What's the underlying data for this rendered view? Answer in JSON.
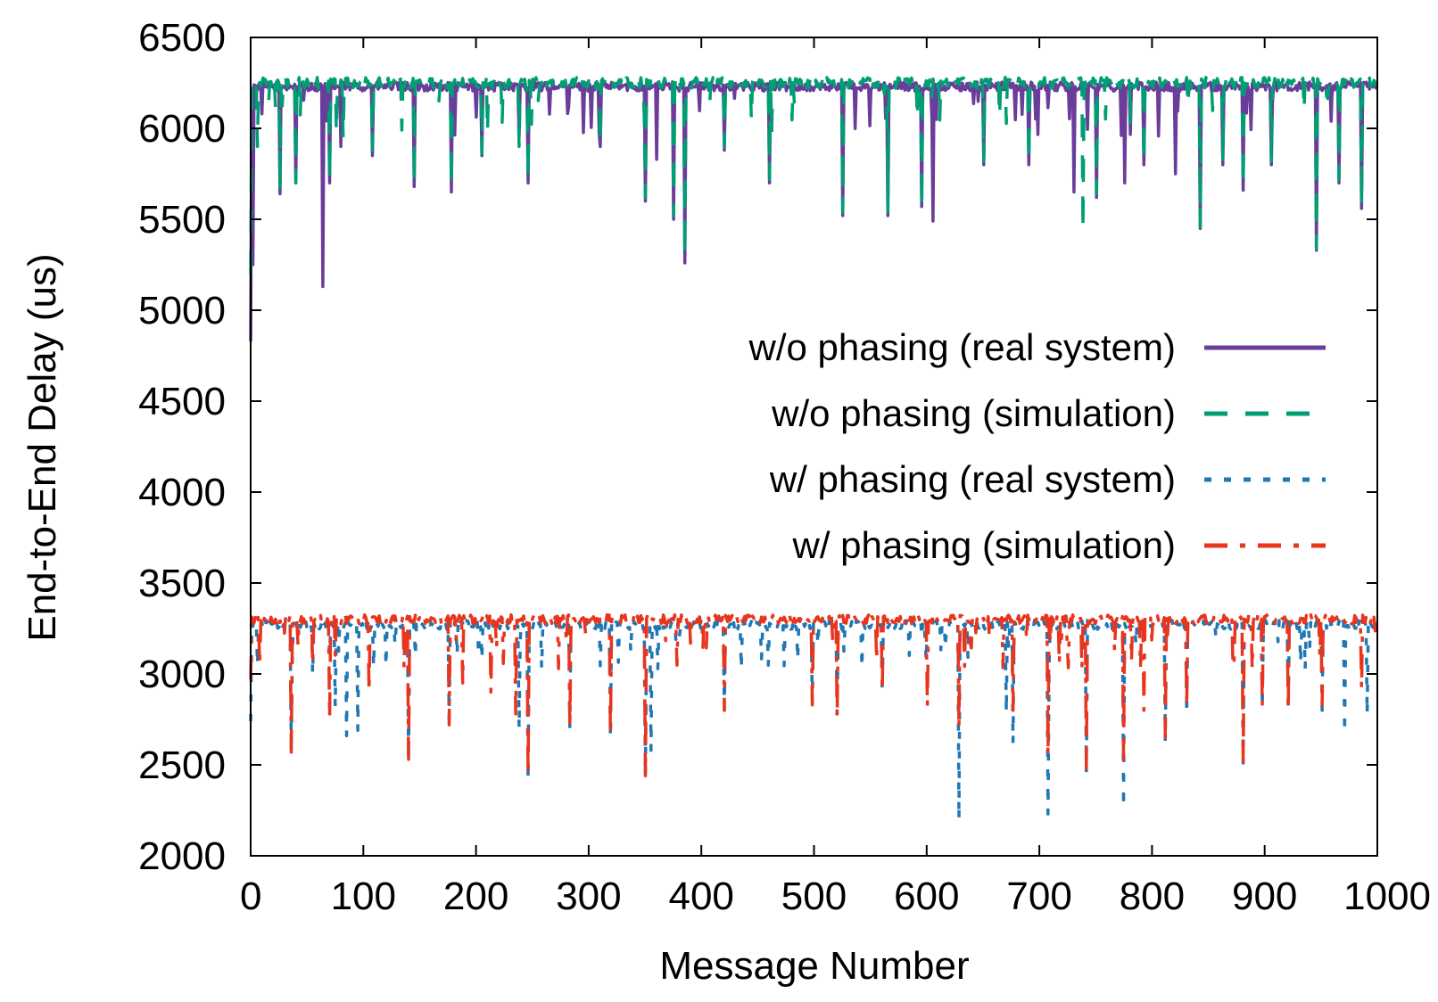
{
  "chart_data": {
    "type": "line",
    "title": "",
    "xlabel": "Message Number",
    "ylabel": "End-to-End Delay (us)",
    "xlim": [
      0,
      1000
    ],
    "ylim": [
      2000,
      6500
    ],
    "x_ticks": [
      0,
      100,
      200,
      300,
      400,
      500,
      600,
      700,
      800,
      900,
      1000
    ],
    "y_ticks": [
      2000,
      2500,
      3000,
      3500,
      4000,
      4500,
      5000,
      5500,
      6000,
      6500
    ],
    "legend_position": "right",
    "grid": false,
    "n_points": 1000,
    "series": [
      {
        "name": "w/o phasing (real system)",
        "color": "#6a3d9a",
        "style": "solid",
        "baseline": 6230,
        "jitter": 25,
        "first_value": 4830,
        "dips": [
          [
            2,
            5250
          ],
          [
            10,
            6080
          ],
          [
            26,
            5640
          ],
          [
            40,
            5700
          ],
          [
            64,
            5130
          ],
          [
            70,
            5700
          ],
          [
            80,
            5900
          ],
          [
            108,
            5850
          ],
          [
            145,
            5680
          ],
          [
            178,
            5650
          ],
          [
            205,
            5850
          ],
          [
            238,
            5950
          ],
          [
            246,
            5700
          ],
          [
            310,
            5900
          ],
          [
            350,
            5600
          ],
          [
            360,
            5830
          ],
          [
            375,
            5500
          ],
          [
            385,
            5260
          ],
          [
            420,
            5880
          ],
          [
            460,
            5700
          ],
          [
            525,
            5520
          ],
          [
            565,
            5520
          ],
          [
            595,
            5570
          ],
          [
            605,
            5490
          ],
          [
            650,
            5800
          ],
          [
            690,
            5800
          ],
          [
            730,
            5650
          ],
          [
            750,
            5620
          ],
          [
            775,
            5700
          ],
          [
            792,
            5800
          ],
          [
            820,
            5750
          ],
          [
            842,
            5450
          ],
          [
            862,
            5800
          ],
          [
            880,
            5660
          ],
          [
            905,
            5800
          ],
          [
            945,
            5330
          ],
          [
            965,
            5700
          ],
          [
            985,
            5560
          ]
        ]
      },
      {
        "name": "w/o phasing (simulation)",
        "color": "#009e73",
        "style": "dash",
        "baseline": 6250,
        "jitter": 30,
        "first_value": 5200,
        "dips": [
          [
            6,
            5900
          ],
          [
            16,
            6150
          ],
          [
            26,
            5660
          ],
          [
            40,
            5700
          ],
          [
            70,
            5720
          ],
          [
            82,
            5950
          ],
          [
            108,
            5880
          ],
          [
            145,
            5700
          ],
          [
            178,
            5680
          ],
          [
            205,
            5860
          ],
          [
            238,
            5900
          ],
          [
            246,
            5720
          ],
          [
            310,
            5920
          ],
          [
            350,
            5620
          ],
          [
            375,
            5520
          ],
          [
            385,
            5300
          ],
          [
            420,
            5900
          ],
          [
            460,
            5720
          ],
          [
            525,
            5540
          ],
          [
            565,
            5540
          ],
          [
            595,
            5560
          ],
          [
            650,
            5820
          ],
          [
            690,
            5820
          ],
          [
            738,
            5440
          ],
          [
            750,
            5640
          ],
          [
            792,
            5820
          ],
          [
            842,
            5460
          ],
          [
            862,
            5820
          ],
          [
            880,
            5680
          ],
          [
            905,
            5820
          ],
          [
            945,
            5340
          ],
          [
            965,
            5720
          ],
          [
            985,
            5580
          ]
        ]
      },
      {
        "name": "w/ phasing (real system)",
        "color": "#1f77b4",
        "style": "dot",
        "baseline": 3270,
        "jitter": 25,
        "first_value": 2740,
        "dips": [
          [
            6,
            3050
          ],
          [
            36,
            2570
          ],
          [
            55,
            3000
          ],
          [
            75,
            2820
          ],
          [
            85,
            2660
          ],
          [
            95,
            2690
          ],
          [
            140,
            2520
          ],
          [
            176,
            2750
          ],
          [
            238,
            2700
          ],
          [
            246,
            2420
          ],
          [
            283,
            2710
          ],
          [
            319,
            2650
          ],
          [
            350,
            2440
          ],
          [
            355,
            2580
          ],
          [
            420,
            2800
          ],
          [
            498,
            2850
          ],
          [
            520,
            2780
          ],
          [
            560,
            2900
          ],
          [
            628,
            2200
          ],
          [
            670,
            2790
          ],
          [
            676,
            2620
          ],
          [
            707,
            2230
          ],
          [
            741,
            2460
          ],
          [
            774,
            2270
          ],
          [
            811,
            2630
          ],
          [
            830,
            2780
          ],
          [
            880,
            2510
          ],
          [
            897,
            2820
          ],
          [
            920,
            2800
          ],
          [
            950,
            2800
          ],
          [
            970,
            2680
          ],
          [
            990,
            2780
          ]
        ]
      },
      {
        "name": "w/ phasing (simulation)",
        "color": "#e8351e",
        "style": "dashdot",
        "baseline": 3300,
        "jitter": 25,
        "first_value": 2970,
        "dips": [
          [
            8,
            3050
          ],
          [
            36,
            2570
          ],
          [
            55,
            3050
          ],
          [
            70,
            2760
          ],
          [
            105,
            2900
          ],
          [
            140,
            2530
          ],
          [
            176,
            2720
          ],
          [
            188,
            2950
          ],
          [
            213,
            2900
          ],
          [
            235,
            2780
          ],
          [
            246,
            2440
          ],
          [
            283,
            2700
          ],
          [
            319,
            2660
          ],
          [
            350,
            2440
          ],
          [
            420,
            2800
          ],
          [
            498,
            2830
          ],
          [
            520,
            2760
          ],
          [
            560,
            2900
          ],
          [
            600,
            2820
          ],
          [
            628,
            2700
          ],
          [
            676,
            2800
          ],
          [
            707,
            2550
          ],
          [
            741,
            2480
          ],
          [
            774,
            2530
          ],
          [
            792,
            2800
          ],
          [
            811,
            2650
          ],
          [
            830,
            2820
          ],
          [
            880,
            2500
          ],
          [
            897,
            2820
          ],
          [
            920,
            2800
          ],
          [
            950,
            2830
          ],
          [
            985,
            2920
          ]
        ]
      }
    ]
  }
}
